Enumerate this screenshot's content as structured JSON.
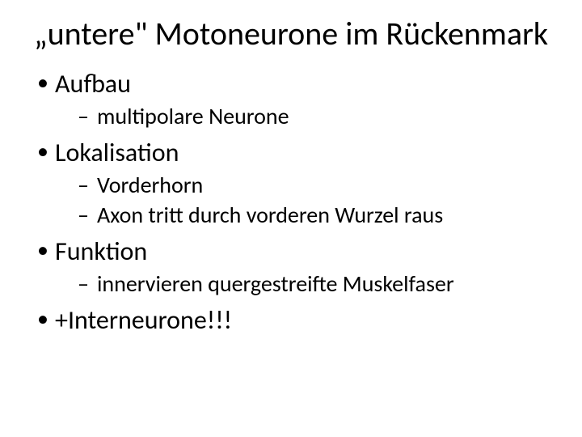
{
  "slide": {
    "title": "„untere\" Motoneurone im Rückenmark",
    "text_color": "#000000",
    "background_color": "#ffffff",
    "title_fontsize": 40,
    "level1_fontsize": 32,
    "level2_fontsize": 28,
    "bullets": [
      {
        "label": "Aufbau",
        "sub": [
          {
            "label": "multipolare Neurone"
          }
        ]
      },
      {
        "label": "Lokalisation",
        "sub": [
          {
            "label": "Vorderhorn"
          },
          {
            "label": "Axon tritt durch vorderen Wurzel raus"
          }
        ]
      },
      {
        "label": "Funktion",
        "sub": [
          {
            "label": "innervieren quergestreifte Muskelfaser"
          }
        ]
      },
      {
        "label": "+Interneurone!!!",
        "sub": []
      }
    ]
  }
}
